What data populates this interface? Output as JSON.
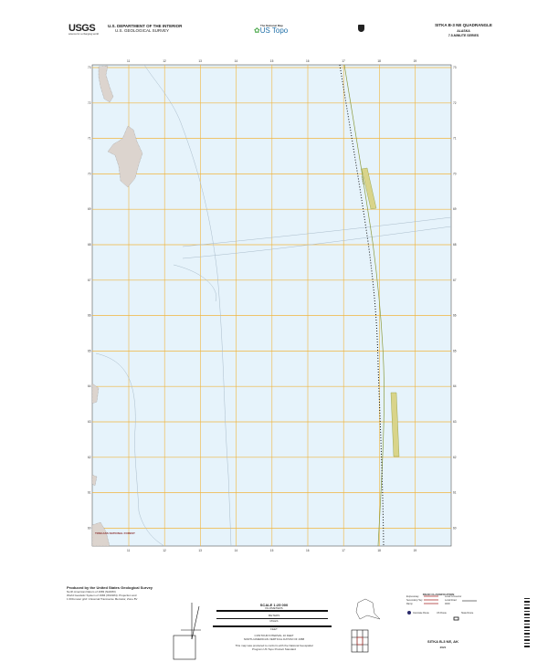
{
  "header": {
    "agency_logo": "USGS",
    "agency_tagline": "science for a changing world",
    "department": "U.S. DEPARTMENT OF THE INTERIOR",
    "survey": "U.S. GEOLOGICAL SURVEY",
    "product_tagline": "The National Map",
    "product_logo": "US Topo",
    "shield_icon": "us-route-shield-icon",
    "quad_name": "SITKA B-3 NE QUADRANGLE",
    "state": "ALASKA",
    "series": "7.5-MINUTE SERIES"
  },
  "map": {
    "colors": {
      "water": "#e6f3fb",
      "grid": "#f0b43c",
      "contour": "#a9bccb",
      "road": "#8a9a3c",
      "trail": "#111111",
      "land": "#d9d2cc"
    },
    "grid_x_labels": [
      "11",
      "12",
      "13",
      "14",
      "15",
      "16",
      "17",
      "18",
      "19"
    ],
    "grid_y_labels": [
      "73",
      "72",
      "71",
      "70",
      "69",
      "68",
      "67",
      "66",
      "65",
      "64",
      "63",
      "62",
      "61",
      "60"
    ],
    "park_label": "TONGASS NATIONAL FOREST",
    "road_label": "Runway"
  },
  "footer": {
    "producer": "Produced by the United States Geological Survey",
    "producer_notes": [
      "North American Datum of 1983 (NAD83)",
      "World Geodetic System of 1984 (WGS84). Projection and",
      "1 000-meter grid: Universal Transverse Mercator, Zone 8V"
    ],
    "scale_title": "SCALE 1:25 000",
    "scale_units": [
      "KILOMETERS",
      "METERS",
      "MILES",
      "FEET"
    ],
    "contour_note": "CONTOUR INTERVAL 10 FEET",
    "datum_note": "NORTH AMERICAN VERTICAL DATUM OF 1988",
    "standards_note": "This map was produced to conform with the National Geospatial Program US Topo Product Standard",
    "road_legend_title": "ROAD CLASSIFICATION",
    "road_legend": [
      "Expressway",
      "Secondary Hwy",
      "Ramp",
      "Local Connector",
      "Local Road",
      "4WD",
      "Interstate Route",
      "US Route",
      "State Route"
    ],
    "quad_label": "SITKA B-3 NE, AK",
    "year": "2021"
  }
}
